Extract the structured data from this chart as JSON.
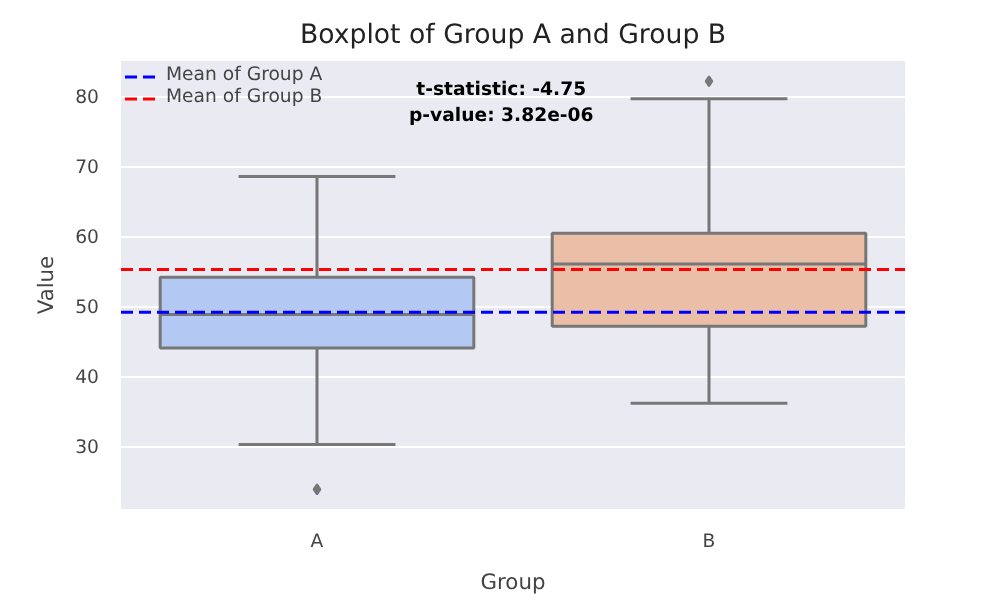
{
  "chart_data": {
    "type": "box",
    "title": "Boxplot of Group A and Group B",
    "xlabel": "Group",
    "ylabel": "Value",
    "categories": [
      "A",
      "B"
    ],
    "series": [
      {
        "boxes": [
          {
            "low": 30.2,
            "q1": 44.0,
            "median": 48.8,
            "q3": 54.1,
            "high": 68.5,
            "outliers": [
              23.8
            ]
          },
          {
            "low": 36.1,
            "q1": 47.1,
            "median": 56.0,
            "q3": 60.4,
            "high": 79.6,
            "outliers": [
              82.1
            ]
          }
        ],
        "colors": [
          "#b3c8f2",
          "#ebbea8"
        ]
      }
    ],
    "ylim": [
      21,
      85
    ],
    "yticks": [
      30,
      40,
      50,
      60,
      70,
      80
    ],
    "ref_lines": [
      {
        "axis": "y",
        "value": 49.1,
        "label": "Mean of Group A",
        "color": "#0000ff",
        "line_style": "dashed"
      },
      {
        "axis": "y",
        "value": 55.2,
        "label": "Mean of Group B",
        "color": "#ff0000",
        "line_style": "dashed"
      }
    ],
    "annotations": [
      "t-statistic: -4.75\np-value: 3.82e-06"
    ],
    "grid": "y",
    "legend": "top left"
  }
}
